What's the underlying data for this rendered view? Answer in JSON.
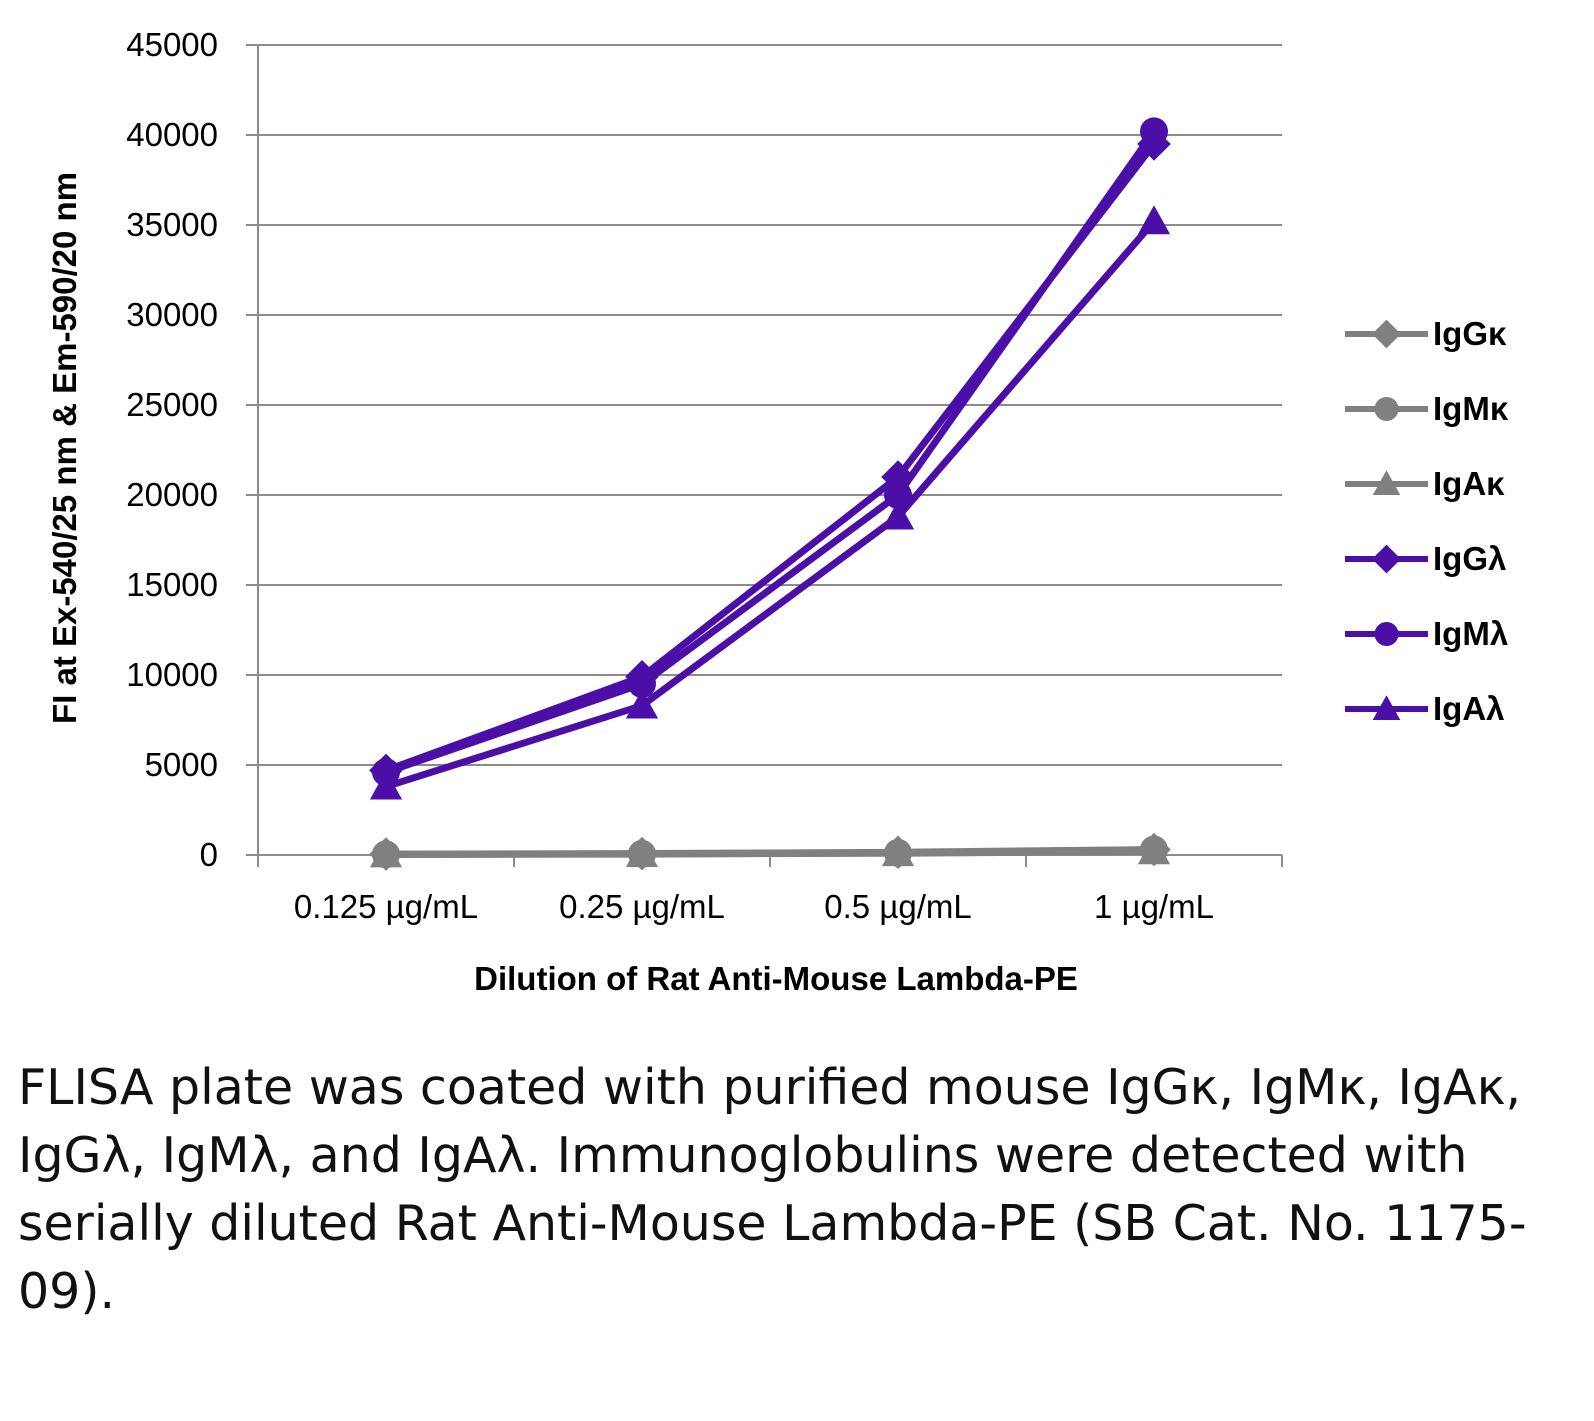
{
  "chart_data": {
    "type": "line",
    "title": "",
    "xlabel": "Dilution of Rat Anti-Mouse Lambda-PE",
    "ylabel": "FI at Ex-540/25 nm & Em-590/20 nm",
    "categories": [
      "0.125 µg/mL",
      "0.25 µg/mL",
      "0.5 µg/mL",
      "1 µg/mL"
    ],
    "ylim": [
      0,
      45000
    ],
    "yticks": [
      0,
      5000,
      10000,
      15000,
      20000,
      25000,
      30000,
      35000,
      40000,
      45000
    ],
    "grid": true,
    "legend_position": "right",
    "series": [
      {
        "name": "IgGκ",
        "values": [
          50,
          80,
          150,
          300
        ],
        "color": "#808080",
        "marker": "diamond"
      },
      {
        "name": "IgMκ",
        "values": [
          40,
          60,
          120,
          300
        ],
        "color": "#808080",
        "marker": "circle"
      },
      {
        "name": "IgAκ",
        "values": [
          30,
          50,
          100,
          200
        ],
        "color": "#808080",
        "marker": "triangle"
      },
      {
        "name": "IgGλ",
        "values": [
          4700,
          9900,
          21000,
          39500
        ],
        "color": "#4B0FA8",
        "marker": "diamond"
      },
      {
        "name": "IgMλ",
        "values": [
          4600,
          9500,
          20000,
          40200
        ],
        "color": "#4B0FA8",
        "marker": "circle"
      },
      {
        "name": "IgAλ",
        "values": [
          3800,
          8300,
          18800,
          35200
        ],
        "color": "#4B0FA8",
        "marker": "triangle"
      }
    ]
  },
  "caption": "FLISA plate was coated with purified mouse IgGκ, IgMκ, IgAκ, IgGλ, IgMλ, and IgAλ. Immunoglobulins were detected with serially diluted Rat Anti-Mouse Lambda-PE (SB Cat. No. 1175-09)."
}
